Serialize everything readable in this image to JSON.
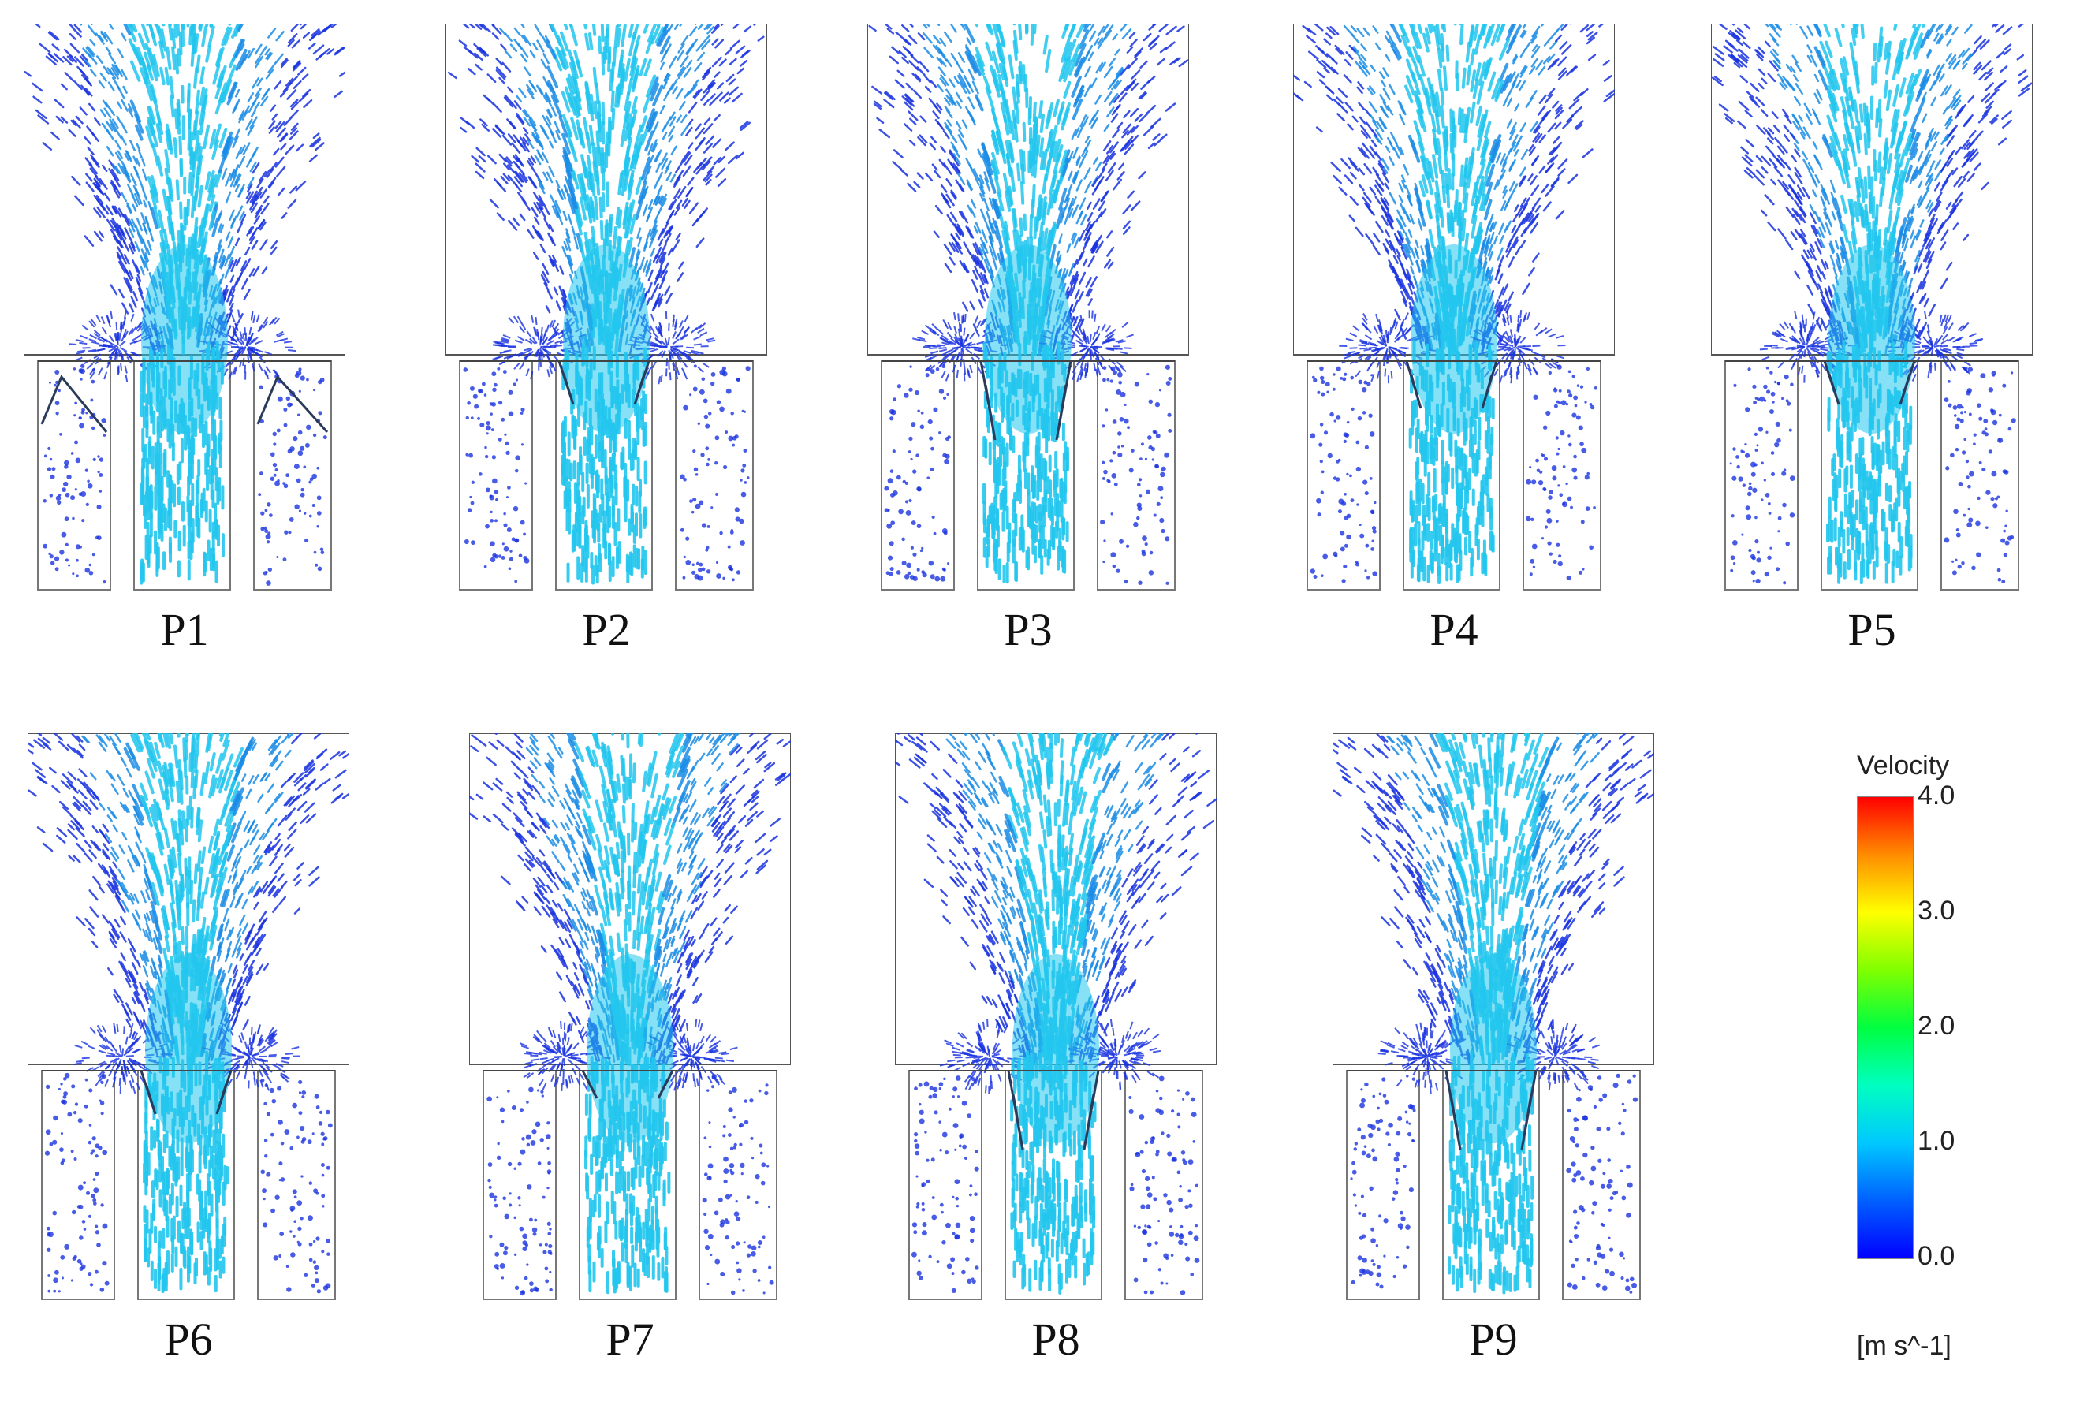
{
  "panels": [
    {
      "label": "P1",
      "baffle": "open-wide"
    },
    {
      "label": "P2",
      "baffle": "inner"
    },
    {
      "label": "P3",
      "baffle": "inner-long"
    },
    {
      "label": "P4",
      "baffle": "inner-short"
    },
    {
      "label": "P5",
      "baffle": "inner-small"
    },
    {
      "label": "P6",
      "baffle": "inner-small"
    },
    {
      "label": "P7",
      "baffle": "inner-flat"
    },
    {
      "label": "P8",
      "baffle": "inner-long"
    },
    {
      "label": "P9",
      "baffle": "inner-long"
    }
  ],
  "legend": {
    "title": "Velocity",
    "ticks": [
      "4.0",
      "3.0",
      "2.0",
      "1.0",
      "0.0"
    ],
    "units": "[m s^-1]",
    "colormap": [
      "#ff0000",
      "#ff8c00",
      "#ffff00",
      "#80ff00",
      "#00ff40",
      "#00ffc0",
      "#00c8ff",
      "#0060ff",
      "#0000ff"
    ],
    "min": 0.0,
    "max": 4.0
  },
  "colors": {
    "vector_core": "#22c6ee",
    "vector_mid": "#1b8ce6",
    "vector_low": "#1a33e0",
    "outline": "#555555"
  }
}
